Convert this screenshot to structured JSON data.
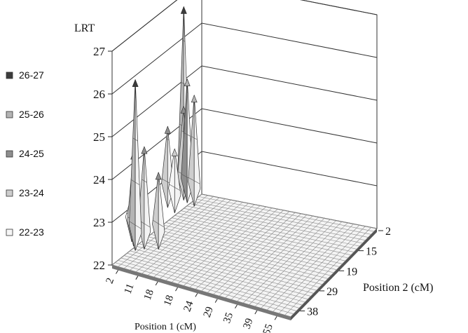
{
  "chart_data": {
    "type": "surface-3d",
    "zlabel": "LRT",
    "xlabel": "Position 1 (cM)",
    "ylabel": "Position 2 (cM)",
    "zlim": [
      22,
      27
    ],
    "z_ticks": [
      "22",
      "23",
      "24",
      "25",
      "26",
      "27"
    ],
    "x_tick_labels": [
      "2",
      "11",
      "18",
      "18",
      "24",
      "29",
      "35",
      "39",
      "55"
    ],
    "y_tick_labels": [
      "2",
      "15",
      "19",
      "29",
      "38"
    ],
    "legend_position": "left",
    "legend": [
      {
        "label": "26-27",
        "color": "#3c3c3c"
      },
      {
        "label": "25-26",
        "color": "#b4b4b4"
      },
      {
        "label": "24-25",
        "color": "#8e8e8e"
      },
      {
        "label": "23-24",
        "color": "#cdcdcd"
      },
      {
        "label": "22-23",
        "color": "#f6f6f6"
      }
    ],
    "peaks": [
      {
        "x": 11,
        "y": 2,
        "lrt": 26.4
      },
      {
        "x": 8,
        "y": 4,
        "lrt": 24.6
      },
      {
        "x": 14,
        "y": 4,
        "lrt": 24.8
      },
      {
        "x": 20,
        "y": 6,
        "lrt": 24.2
      },
      {
        "x": 5,
        "y": 6,
        "lrt": 23.5
      },
      {
        "x": 2,
        "y": 38,
        "lrt": 26.8
      },
      {
        "x": 5,
        "y": 35,
        "lrt": 24.6
      },
      {
        "x": 2,
        "y": 29,
        "lrt": 24.3
      },
      {
        "x": 8,
        "y": 34,
        "lrt": 25.3
      },
      {
        "x": 13,
        "y": 33,
        "lrt": 25.0
      },
      {
        "x": 8,
        "y": 27,
        "lrt": 23.9
      }
    ]
  }
}
